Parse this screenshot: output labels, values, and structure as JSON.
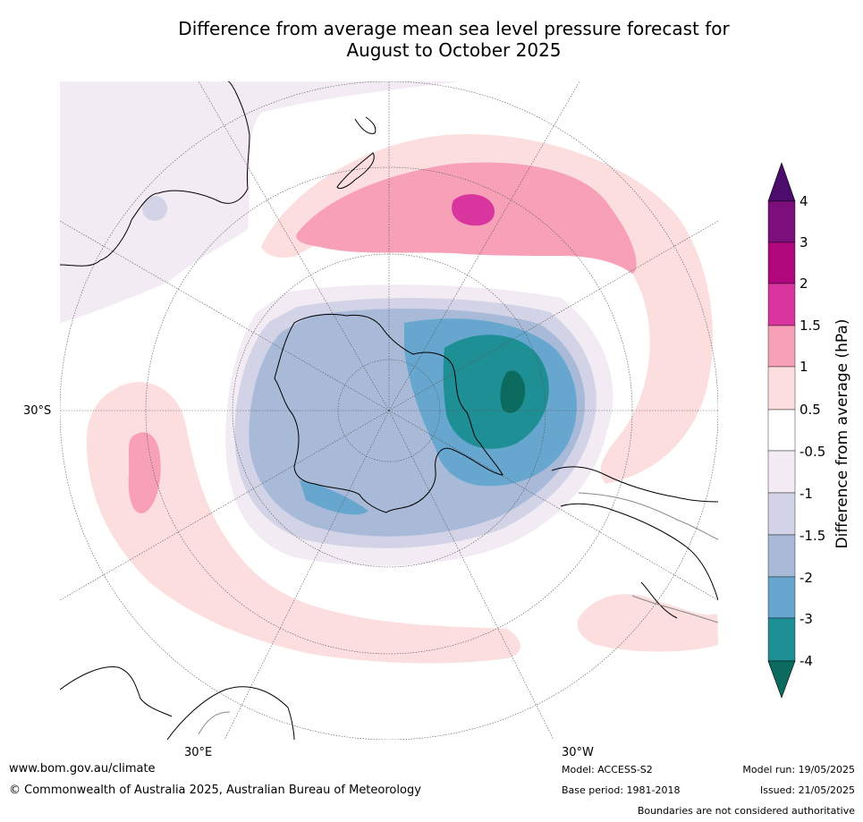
{
  "title": {
    "line1": "Difference from average mean sea level pressure forecast for",
    "line2": "August to October 2025"
  },
  "map": {
    "projection": "south-polar-stereographic",
    "labels": {
      "lat_30s": "30°S",
      "lon_30e": "30°E",
      "lon_30w": "30°W"
    },
    "colors": {
      "coast": "#000000",
      "border": "#888888",
      "grid": "#555555"
    }
  },
  "colorbar": {
    "title": "Difference from average (hPa)",
    "ticks": [
      "4",
      "3",
      "2",
      "1.5",
      "1",
      "0.5",
      "-0.5",
      "-1",
      "-1.5",
      "-2",
      "-3",
      "-4"
    ],
    "colors": [
      "#4b0c6b",
      "#7d0f7d",
      "#b0077d",
      "#d9359f",
      "#f7a0b7",
      "#fcdede",
      "#ffffff",
      "#f2ebf4",
      "#d2d3e6",
      "#a9bad9",
      "#67a7cf",
      "#1f8f96",
      "#0a6b5e"
    ]
  },
  "footer": {
    "website": "www.bom.gov.au/climate",
    "copyright": "© Commonwealth of Australia 2025, Australian Bureau of Meteorology",
    "model": "Model: ACCESS-S2",
    "base_period": "Base period: 1981-2018",
    "model_run": "Model run: 19/05/2025",
    "issued": "Issued: 21/05/2025",
    "disclaimer": "Boundaries are not considered authoritative"
  }
}
